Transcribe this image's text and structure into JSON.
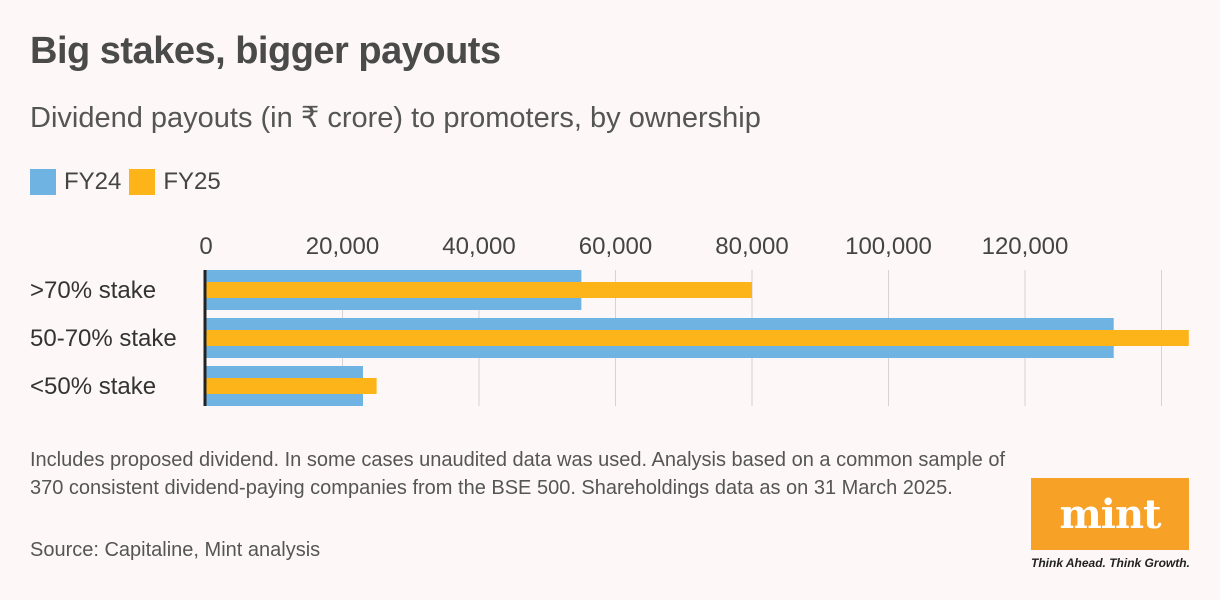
{
  "header": {
    "title": "Big stakes, bigger payouts",
    "subtitle": "Dividend payouts (in ₹ crore) to promoters, by ownership"
  },
  "legend": {
    "items": [
      {
        "label": "FY24",
        "color": "#6fb3e3"
      },
      {
        "label": "FY25",
        "color": "#fcb418"
      }
    ]
  },
  "chart_data": {
    "type": "bar",
    "orientation": "horizontal",
    "title": "Big stakes, bigger payouts",
    "subtitle": "Dividend payouts (in ₹ crore) to promoters, by ownership",
    "categories": [
      ">70% stake",
      "50-70% stake",
      "<50% stake"
    ],
    "series": [
      {
        "name": "FY24",
        "color": "#6fb3e3",
        "values": [
          55000,
          133000,
          23000
        ]
      },
      {
        "name": "FY25",
        "color": "#fcb418",
        "values": [
          80000,
          144000,
          25000
        ]
      }
    ],
    "xlim": [
      0,
      140000
    ],
    "xticks": [
      0,
      20000,
      40000,
      60000,
      80000,
      100000,
      120000
    ],
    "xtick_labels": [
      "0",
      "20,000",
      "40,000",
      "60,000",
      "80,000",
      "100,000",
      "120,000"
    ],
    "grid": true,
    "legend_position": "top-left",
    "xlabel": "",
    "ylabel": ""
  },
  "footer": {
    "note": "Includes proposed dividend. In some cases unaudited data was used. Analysis based on a common sample of 370 consistent dividend-paying companies from the BSE 500. Shareholdings data as on 31 March 2025.",
    "source": "Source: Capitaline, Mint analysis"
  },
  "brand": {
    "logo_text": "mint",
    "tagline": "Think Ahead. Think Growth."
  }
}
